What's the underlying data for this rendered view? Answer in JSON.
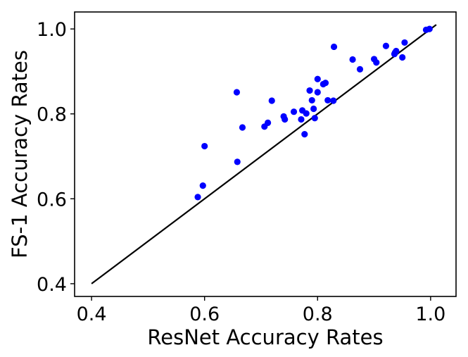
{
  "chart_data": {
    "type": "scatter",
    "xlabel": "ResNet Accuracy Rates",
    "ylabel": "FS-1 Accuracy Rates",
    "xlim": [
      0.37,
      1.045
    ],
    "ylim": [
      0.37,
      1.04
    ],
    "xticks": [
      0.4,
      0.6,
      0.8,
      1.0
    ],
    "yticks": [
      0.4,
      0.6,
      0.8,
      1.0
    ],
    "xtick_labels": [
      "0.4",
      "0.6",
      "0.8",
      "1.0"
    ],
    "ytick_labels": [
      "0.4",
      "0.6",
      "0.8",
      "1.0"
    ],
    "grid": false,
    "point_color": "#0000ff",
    "line_color": "#000000",
    "reference_line": {
      "x": [
        0.4,
        1.01
      ],
      "y": [
        0.4,
        1.01
      ]
    },
    "points": [
      {
        "x": 0.588,
        "y": 0.604
      },
      {
        "x": 0.597,
        "y": 0.631
      },
      {
        "x": 0.6,
        "y": 0.724
      },
      {
        "x": 0.657,
        "y": 0.851
      },
      {
        "x": 0.658,
        "y": 0.687
      },
      {
        "x": 0.667,
        "y": 0.768
      },
      {
        "x": 0.706,
        "y": 0.77
      },
      {
        "x": 0.712,
        "y": 0.779
      },
      {
        "x": 0.719,
        "y": 0.831
      },
      {
        "x": 0.74,
        "y": 0.794
      },
      {
        "x": 0.742,
        "y": 0.787
      },
      {
        "x": 0.758,
        "y": 0.805
      },
      {
        "x": 0.771,
        "y": 0.787
      },
      {
        "x": 0.773,
        "y": 0.808
      },
      {
        "x": 0.777,
        "y": 0.752
      },
      {
        "x": 0.78,
        "y": 0.801
      },
      {
        "x": 0.786,
        "y": 0.855
      },
      {
        "x": 0.79,
        "y": 0.832
      },
      {
        "x": 0.793,
        "y": 0.812
      },
      {
        "x": 0.795,
        "y": 0.79
      },
      {
        "x": 0.8,
        "y": 0.851
      },
      {
        "x": 0.8,
        "y": 0.882
      },
      {
        "x": 0.81,
        "y": 0.87
      },
      {
        "x": 0.814,
        "y": 0.873
      },
      {
        "x": 0.818,
        "y": 0.832
      },
      {
        "x": 0.828,
        "y": 0.831
      },
      {
        "x": 0.829,
        "y": 0.958
      },
      {
        "x": 0.862,
        "y": 0.928
      },
      {
        "x": 0.875,
        "y": 0.905
      },
      {
        "x": 0.9,
        "y": 0.929
      },
      {
        "x": 0.904,
        "y": 0.921
      },
      {
        "x": 0.921,
        "y": 0.96
      },
      {
        "x": 0.936,
        "y": 0.941
      },
      {
        "x": 0.937,
        "y": 0.944
      },
      {
        "x": 0.939,
        "y": 0.948
      },
      {
        "x": 0.95,
        "y": 0.933
      },
      {
        "x": 0.954,
        "y": 0.968
      },
      {
        "x": 0.992,
        "y": 0.998
      },
      {
        "x": 0.998,
        "y": 1.0
      }
    ]
  }
}
